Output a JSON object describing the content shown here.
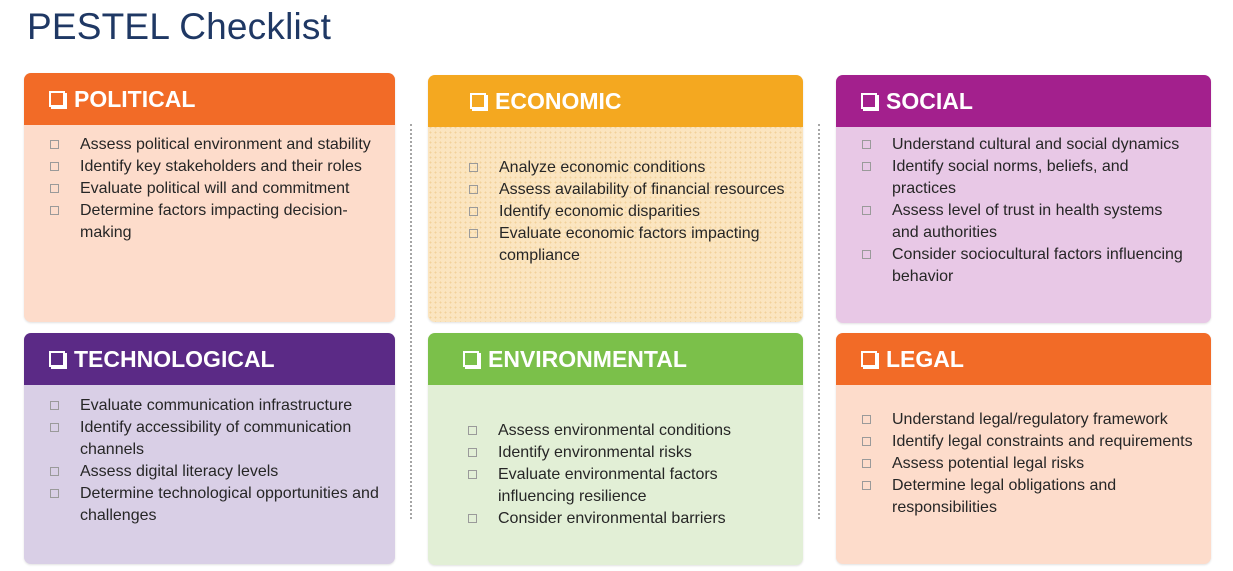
{
  "title": "PESTEL Checklist",
  "cards": {
    "political": {
      "heading": "POLITICAL",
      "color": "#f26b27",
      "bg": "#fddccb",
      "items": [
        "Assess political environment and stability",
        "Identify key stakeholders and their roles",
        "Evaluate political will and commitment",
        "Determine factors impacting decision-making"
      ]
    },
    "economic": {
      "heading": "ECONOMIC",
      "color": "#f4a820",
      "bg": "#fbe5c0",
      "items": [
        "Analyze economic conditions",
        "Assess availability of financial resources",
        "Identify economic disparities",
        "Evaluate economic factors impacting compliance"
      ]
    },
    "social": {
      "heading": "SOCIAL",
      "color": "#a3208d",
      "bg": "#e8c8e6",
      "items": [
        "Understand cultural and social dynamics",
        "Identify social norms, beliefs, and practices",
        "Assess level of trust in health systems and authorities",
        "Consider sociocultural factors influencing behavior"
      ]
    },
    "technological": {
      "heading": "TECHNOLOGICAL",
      "color": "#5b2a86",
      "bg": "#d9cfe6",
      "items": [
        "Evaluate communication infrastructure",
        "Identify accessibility of communication channels",
        "Assess digital literacy levels",
        "Determine technological opportunities and challenges"
      ]
    },
    "environmental": {
      "heading": "ENVIRONMENTAL",
      "color": "#7bc04a",
      "bg": "#e2efd6",
      "items": [
        "Assess environmental conditions",
        "Identify environmental risks",
        "Evaluate environmental factors influencing resilience",
        "Consider environmental barriers"
      ]
    },
    "legal": {
      "heading": "LEGAL",
      "color": "#f26b27",
      "bg": "#fddccb",
      "items": [
        "Understand legal/regulatory framework",
        "Identify legal constraints and requirements",
        "Assess potential legal risks",
        "Determine legal obligations and responsibilities"
      ]
    }
  },
  "icons": {
    "heading_checkbox": "checkbox-outline-icon",
    "item_checkbox": "checkbox-outline-icon"
  }
}
